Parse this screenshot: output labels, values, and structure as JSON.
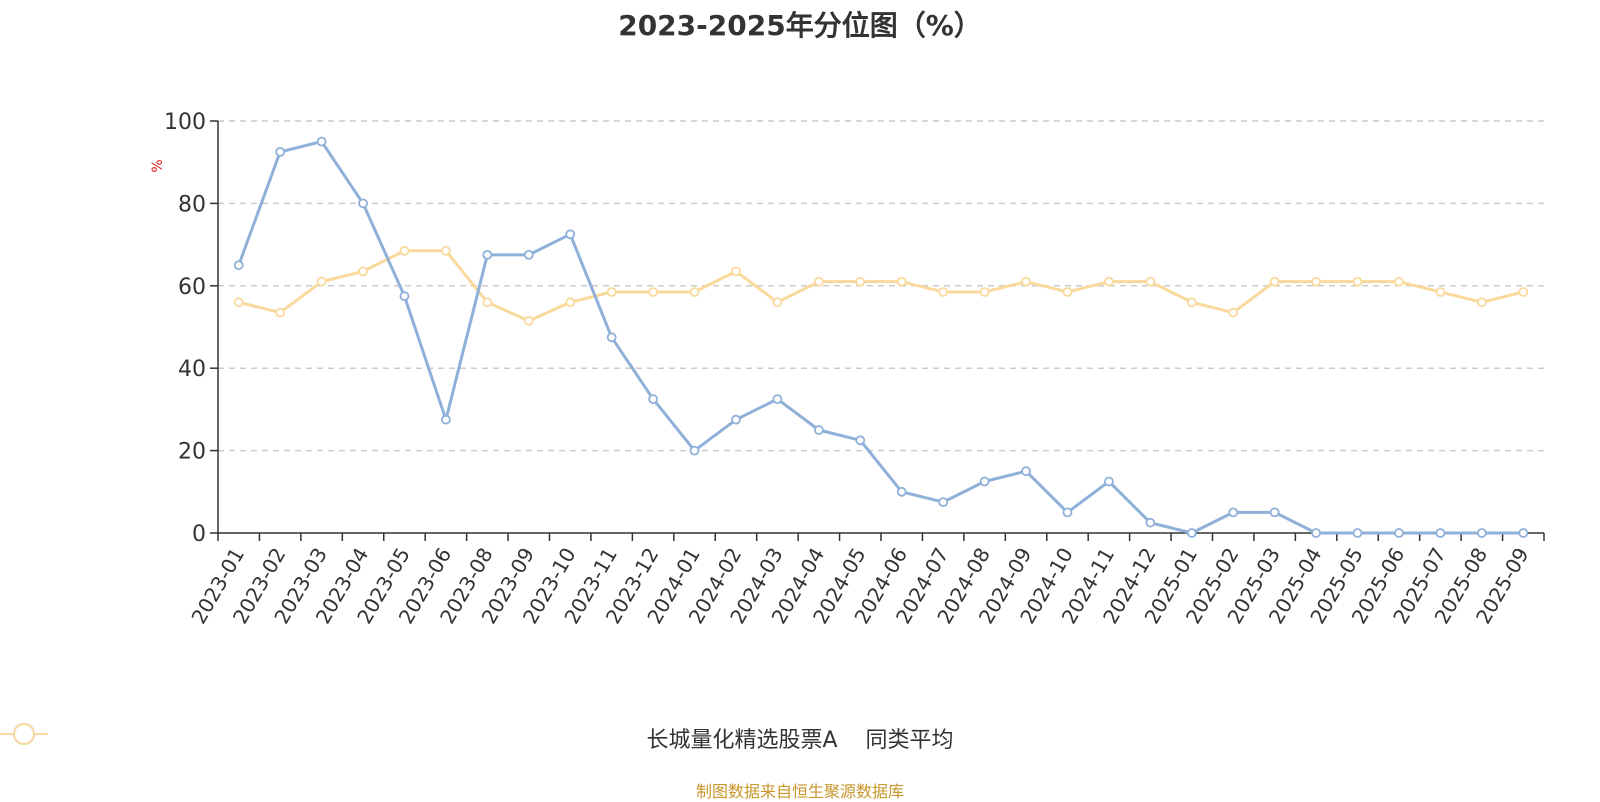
{
  "title": "2023-2025年分位图（%）",
  "source": "制图数据来自恒生聚源数据库",
  "colors": {
    "series_a": "#8fb0d9",
    "series_b": "#f9d99c",
    "ylabel": "#e02020"
  },
  "chart_data": {
    "type": "line",
    "title": "2023-2025年分位图（%）",
    "ylabel": "%",
    "ylim": [
      0,
      100
    ],
    "yticks": [
      0,
      20,
      40,
      60,
      80,
      100
    ],
    "grid": "horizontal dashed",
    "legend": "bottom-center",
    "categories": [
      "2023-01",
      "2023-02",
      "2023-03",
      "2023-04",
      "2023-05",
      "2023-06",
      "2023-08",
      "2023-09",
      "2023-10",
      "2023-11",
      "2023-12",
      "2024-01",
      "2024-02",
      "2024-03",
      "2024-04",
      "2024-05",
      "2024-06",
      "2024-07",
      "2024-08",
      "2024-09",
      "2024-10",
      "2024-11",
      "2024-12",
      "2025-01",
      "2025-02",
      "2025-03",
      "2025-04",
      "2025-05",
      "2025-06",
      "2025-07",
      "2025-08",
      "2025-09"
    ],
    "series": [
      {
        "name": "长城量化精选股票A",
        "values": [
          65,
          92.5,
          95,
          80,
          57.5,
          27.5,
          67.5,
          67.5,
          72.5,
          47.5,
          32.5,
          20,
          27.5,
          32.5,
          25,
          22.5,
          10,
          7.5,
          12.5,
          15,
          5,
          12.5,
          2.5,
          0,
          5,
          5,
          0,
          0,
          0,
          0,
          0,
          0
        ]
      },
      {
        "name": "同类平均",
        "values": [
          56,
          53.5,
          61,
          63.5,
          68.5,
          68.5,
          56,
          51.5,
          56,
          58.5,
          58.5,
          58.5,
          63.5,
          56,
          61,
          61,
          61,
          58.5,
          58.5,
          61,
          58.5,
          61,
          61,
          56,
          53.5,
          61,
          61,
          61,
          61,
          58.5,
          56,
          58.5
        ]
      }
    ]
  }
}
